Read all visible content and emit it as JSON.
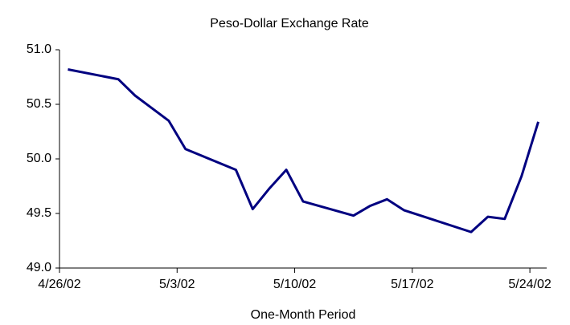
{
  "chart_data": {
    "type": "line",
    "title": "Peso-Dollar Exchange Rate",
    "xlabel": "One-Month Period",
    "x": [
      "2002-04-26",
      "2002-04-29",
      "2002-04-30",
      "2002-05-02",
      "2002-05-03",
      "2002-05-06",
      "2002-05-07",
      "2002-05-08",
      "2002-05-09",
      "2002-05-10",
      "2002-05-13",
      "2002-05-14",
      "2002-05-15",
      "2002-05-16",
      "2002-05-17",
      "2002-05-20",
      "2002-05-21",
      "2002-05-22",
      "2002-05-23",
      "2002-05-24"
    ],
    "series": [
      {
        "name": "Peso-Dollar",
        "color": "#000080",
        "values": [
          50.82,
          50.73,
          50.58,
          50.35,
          50.09,
          49.9,
          49.54,
          49.73,
          49.9,
          49.61,
          49.48,
          49.57,
          49.63,
          49.53,
          49.48,
          49.33,
          49.47,
          49.45,
          49.84,
          50.34
        ]
      }
    ],
    "xlim": [
      "2002-04-26",
      "2002-05-25"
    ],
    "xticks": [
      {
        "value": "2002-04-26",
        "label": "4/26/02"
      },
      {
        "value": "2002-05-03",
        "label": "5/3/02"
      },
      {
        "value": "2002-05-10",
        "label": "5/10/02"
      },
      {
        "value": "2002-05-17",
        "label": "5/17/02"
      },
      {
        "value": "2002-05-24",
        "label": "5/24/02"
      }
    ],
    "ylim": [
      49,
      51
    ],
    "yticks": [
      {
        "value": 49,
        "label": "49.0"
      },
      {
        "value": 49.5,
        "label": "49.5"
      },
      {
        "value": 50,
        "label": "50.0"
      },
      {
        "value": 50.5,
        "label": "50.5"
      },
      {
        "value": 51,
        "label": "51.0"
      }
    ],
    "grid": false
  }
}
